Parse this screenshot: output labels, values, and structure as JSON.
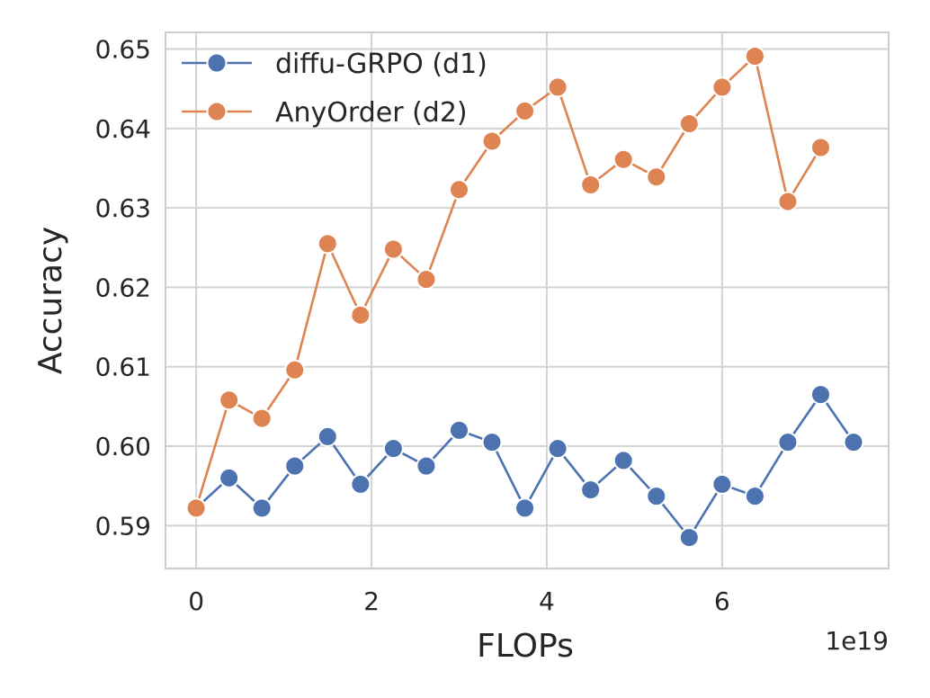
{
  "chart_data": {
    "type": "line",
    "title": "",
    "xlabel": "FLOPs",
    "ylabel": "Accuracy",
    "x_offset_label": "1e19",
    "xlim": [
      -0.35,
      7.9
    ],
    "ylim": [
      0.5846,
      0.6521
    ],
    "x_ticks": [
      0,
      2,
      4,
      6
    ],
    "x_tick_labels": [
      "0",
      "2",
      "4",
      "6"
    ],
    "y_ticks": [
      0.59,
      0.6,
      0.61,
      0.62,
      0.63,
      0.64,
      0.65
    ],
    "y_tick_labels": [
      "0.59",
      "0.60",
      "0.61",
      "0.62",
      "0.63",
      "0.64",
      "0.65"
    ],
    "grid": true,
    "legend_position": "top-left",
    "series": [
      {
        "name": "diffu-GRPO (d1)",
        "color": "#4c72b0",
        "x": [
          0,
          0.375,
          0.75,
          1.125,
          1.5,
          1.875,
          2.25,
          2.625,
          3.0,
          3.375,
          3.75,
          4.125,
          4.5,
          4.875,
          5.25,
          5.625,
          6.0,
          6.375,
          6.75,
          7.125,
          7.5
        ],
        "y": [
          0.5922,
          0.596,
          0.5922,
          0.5975,
          0.6012,
          0.5952,
          0.5997,
          0.5975,
          0.602,
          0.6005,
          0.5922,
          0.5997,
          0.5945,
          0.5982,
          0.5937,
          0.5885,
          0.5952,
          0.5937,
          0.6005,
          0.6065,
          0.6005
        ]
      },
      {
        "name": "AnyOrder (d2)",
        "color": "#dd8452",
        "x": [
          0,
          0.375,
          0.75,
          1.125,
          1.5,
          1.875,
          2.25,
          2.625,
          3.0,
          3.375,
          3.75,
          4.125,
          4.5,
          4.875,
          5.25,
          5.625,
          6.0,
          6.375,
          6.75,
          7.125
        ],
        "y": [
          0.5922,
          0.6058,
          0.6035,
          0.6096,
          0.6255,
          0.6165,
          0.6248,
          0.621,
          0.6323,
          0.6384,
          0.6422,
          0.6452,
          0.6329,
          0.6361,
          0.6339,
          0.6406,
          0.6452,
          0.6491,
          0.6308,
          0.6376
        ]
      }
    ]
  }
}
